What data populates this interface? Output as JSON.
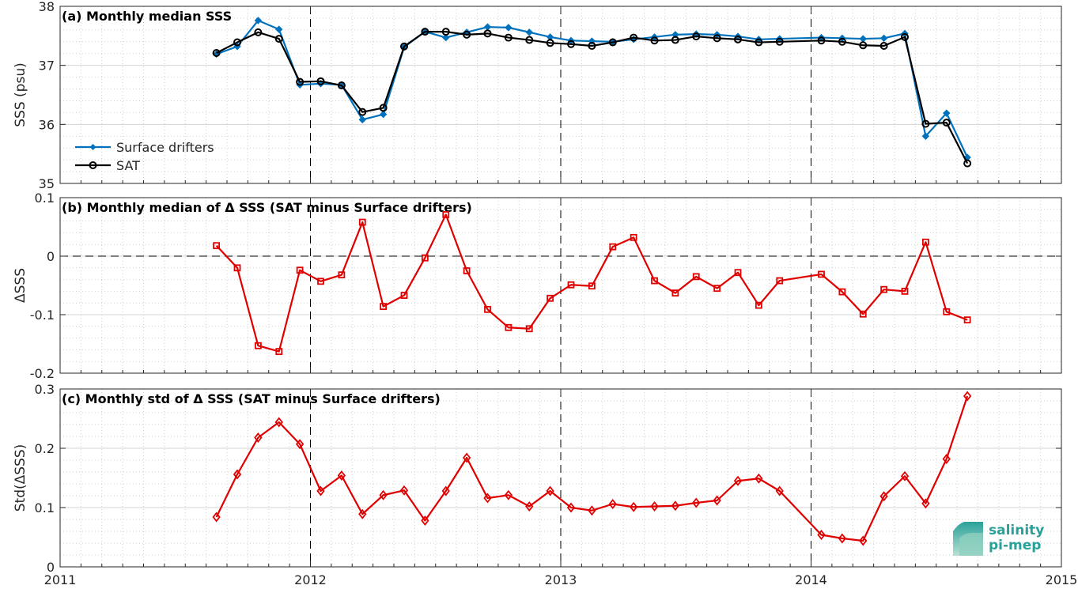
{
  "colors": {
    "drifters": "#0072BD",
    "sat": "#000000",
    "delta": "#E00000",
    "logo": "#2aa198"
  },
  "chart_data": [
    {
      "type": "line",
      "title": "(a) Monthly median SSS",
      "ylabel": "SSS (psu)",
      "ylim": [
        35,
        38
      ],
      "yticks": [
        "35",
        "36",
        "37",
        "38"
      ],
      "legend": {
        "placement": "left-bottom",
        "entries": [
          "Surface drifters",
          "SAT"
        ]
      },
      "series": [
        {
          "name": "Surface drifters",
          "x": [
            "2011-08",
            "2011-09",
            "2011-10",
            "2011-11",
            "2011-12",
            "2012-01",
            "2012-02",
            "2012-03",
            "2012-04",
            "2012-05",
            "2012-06",
            "2012-07",
            "2012-08",
            "2012-09",
            "2012-10",
            "2012-11",
            "2012-12",
            "2013-01",
            "2013-02",
            "2013-03",
            "2013-04",
            "2013-05",
            "2013-06",
            "2013-07",
            "2013-08",
            "2013-09",
            "2013-10",
            "2013-11",
            "2014-01",
            "2014-02",
            "2014-03",
            "2014-04",
            "2014-05",
            "2014-06",
            "2014-07",
            "2014-08"
          ],
          "values": [
            37.19,
            37.32,
            37.76,
            37.61,
            36.67,
            36.69,
            36.67,
            36.08,
            36.17,
            37.31,
            37.57,
            37.47,
            37.56,
            37.65,
            37.64,
            37.56,
            37.48,
            37.42,
            37.41,
            37.4,
            37.44,
            37.48,
            37.52,
            37.53,
            37.52,
            37.49,
            37.44,
            37.45,
            37.47,
            37.46,
            37.45,
            37.46,
            37.54,
            35.8,
            36.19,
            35.44
          ]
        },
        {
          "name": "SAT",
          "x": [
            "2011-08",
            "2011-09",
            "2011-10",
            "2011-11",
            "2011-12",
            "2012-01",
            "2012-02",
            "2012-03",
            "2012-04",
            "2012-05",
            "2012-06",
            "2012-07",
            "2012-08",
            "2012-09",
            "2012-10",
            "2012-11",
            "2012-12",
            "2013-01",
            "2013-02",
            "2013-03",
            "2013-04",
            "2013-05",
            "2013-06",
            "2013-07",
            "2013-08",
            "2013-09",
            "2013-10",
            "2013-11",
            "2014-01",
            "2014-02",
            "2014-03",
            "2014-04",
            "2014-05",
            "2014-06",
            "2014-07",
            "2014-08"
          ],
          "values": [
            37.21,
            37.39,
            37.56,
            37.45,
            36.72,
            36.73,
            36.66,
            36.21,
            36.28,
            37.32,
            37.57,
            37.57,
            37.52,
            37.54,
            37.47,
            37.43,
            37.38,
            37.36,
            37.33,
            37.39,
            37.47,
            37.42,
            37.43,
            37.49,
            37.46,
            37.44,
            37.39,
            37.4,
            37.42,
            37.4,
            37.34,
            37.33,
            37.48,
            36.01,
            36.03,
            35.34
          ]
        }
      ]
    },
    {
      "type": "line",
      "title": "(b) Monthly median of Δ SSS (SAT minus Surface drifters)",
      "ylabel": "ΔSSS",
      "ylim": [
        -0.2,
        0.1
      ],
      "yticks": [
        "-0.2",
        "-0.1",
        "0",
        "0.1"
      ],
      "series": [
        {
          "x": [
            "2011-08",
            "2011-09",
            "2011-10",
            "2011-11",
            "2011-12",
            "2012-01",
            "2012-02",
            "2012-03",
            "2012-04",
            "2012-05",
            "2012-06",
            "2012-07",
            "2012-08",
            "2012-09",
            "2012-10",
            "2012-11",
            "2012-12",
            "2013-01",
            "2013-02",
            "2013-03",
            "2013-04",
            "2013-05",
            "2013-06",
            "2013-07",
            "2013-08",
            "2013-09",
            "2013-10",
            "2013-11",
            "2014-01",
            "2014-02",
            "2014-03",
            "2014-04",
            "2014-05",
            "2014-06",
            "2014-07",
            "2014-08"
          ],
          "values": [
            0.018,
            -0.02,
            -0.153,
            -0.163,
            -0.024,
            -0.043,
            -0.032,
            0.058,
            -0.086,
            -0.067,
            -0.003,
            0.071,
            -0.025,
            -0.091,
            -0.122,
            -0.124,
            -0.072,
            -0.049,
            -0.051,
            0.016,
            0.032,
            -0.042,
            -0.063,
            -0.035,
            -0.055,
            -0.028,
            -0.084,
            -0.042,
            -0.031,
            -0.061,
            -0.099,
            -0.057,
            -0.06,
            0.024,
            -0.095,
            -0.109
          ]
        }
      ]
    },
    {
      "type": "line",
      "title": "(c) Monthly std of Δ SSS (SAT minus Surface drifters)",
      "ylabel": "Std(ΔSSS)",
      "ylim": [
        0,
        0.3
      ],
      "yticks": [
        "0",
        "0.1",
        "0.2",
        "0.3"
      ],
      "xticks": [
        "2011",
        "2012",
        "2013",
        "2014",
        "2015"
      ],
      "series": [
        {
          "x": [
            "2011-08",
            "2011-09",
            "2011-10",
            "2011-11",
            "2011-12",
            "2012-01",
            "2012-02",
            "2012-03",
            "2012-04",
            "2012-05",
            "2012-06",
            "2012-07",
            "2012-08",
            "2012-09",
            "2012-10",
            "2012-11",
            "2012-12",
            "2013-01",
            "2013-02",
            "2013-03",
            "2013-04",
            "2013-05",
            "2013-06",
            "2013-07",
            "2013-08",
            "2013-09",
            "2013-10",
            "2013-11",
            "2014-01",
            "2014-02",
            "2014-03",
            "2014-04",
            "2014-05",
            "2014-06",
            "2014-07",
            "2014-08"
          ],
          "values": [
            0.084,
            0.156,
            0.218,
            0.244,
            0.207,
            0.128,
            0.154,
            0.089,
            0.121,
            0.129,
            0.078,
            0.128,
            0.184,
            0.116,
            0.121,
            0.102,
            0.128,
            0.1,
            0.095,
            0.106,
            0.101,
            0.102,
            0.103,
            0.108,
            0.112,
            0.145,
            0.149,
            0.128,
            0.054,
            0.048,
            0.044,
            0.119,
            0.153,
            0.107,
            0.182,
            0.288
          ]
        }
      ]
    }
  ],
  "logo": {
    "line1": "salinity",
    "line2": "pi-mep"
  }
}
